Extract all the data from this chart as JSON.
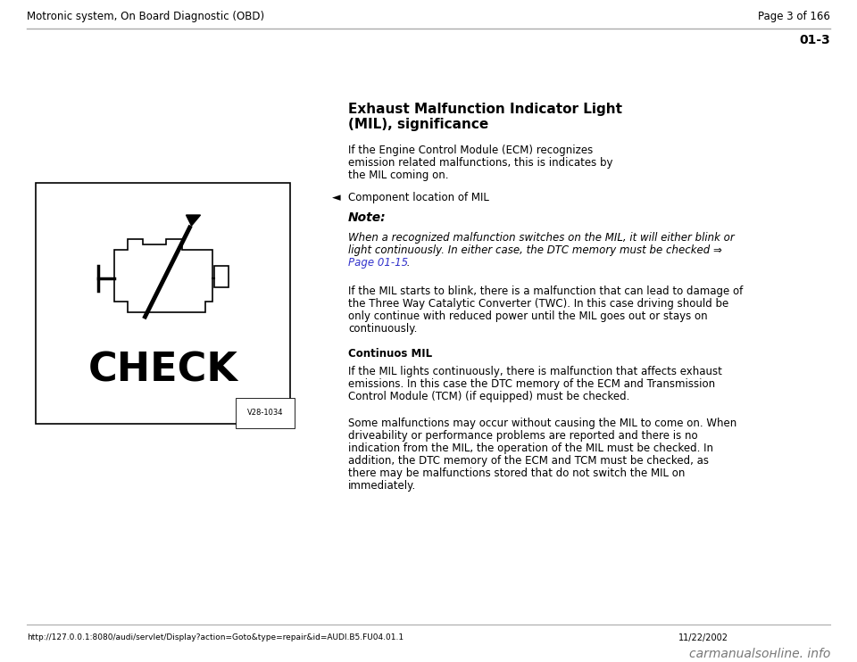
{
  "bg_color": "#ffffff",
  "header_left": "Motronic system, On Board Diagnostic (OBD)",
  "header_right": "Page 3 of 166",
  "section_code": "01-3",
  "title_line1": "Exhaust Malfunction Indicator Light",
  "title_line2": "(MIL), significance",
  "intro_line1": "If the Engine Control Module (ECM) recognizes",
  "intro_line2": "emission related malfunctions, this is indicates by",
  "intro_line3": "the MIL coming on.",
  "bullet_label": "◄",
  "bullet_text": "Component location of MIL",
  "note_label": "Note:",
  "note_italic_line1": "When a recognized malfunction switches on the MIL, it will either blink or",
  "note_italic_line2": "light continuously. In either case, the DTC memory must be checked ⇒",
  "note_link": "Page 01-15",
  "note_link_suffix": " .",
  "body1_line1": "If the MIL starts to blink, there is a malfunction that can lead to damage of",
  "body1_line2": "the Three Way Catalytic Converter (TWC). In this case driving should be",
  "body1_line3": "only continue with reduced power until the MIL goes out or stays on",
  "body1_line4": "continuously.",
  "subheading": "Continuos MIL",
  "body2_line1": "If the MIL lights continuously, there is malfunction that affects exhaust",
  "body2_line2": "emissions. In this case the DTC memory of the ECM and Transmission",
  "body2_line3": "Control Module (TCM) (if equipped) must be checked.",
  "body3_line1": "Some malfunctions may occur without causing the MIL to come on. When",
  "body3_line2": "driveability or performance problems are reported and there is no",
  "body3_line3": "indication from the MIL, the operation of the MIL must be checked. In",
  "body3_line4": "addition, the DTC memory of the ECM and TCM must be checked, as",
  "body3_line5": "there may be malfunctions stored that do not switch the MIL on",
  "body3_line6": "immediately.",
  "footer_url": "http://127.0.0.1:8080/audi/servlet/Display?action=Goto&type=repair&id=AUDI.B5.FU04.01.1",
  "footer_date": "11/22/2002",
  "footer_watermark": "carmanualsонline. info",
  "image_label": "V28-1034",
  "header_line_color": "#aaaaaa",
  "text_color": "#000000",
  "link_color": "#3333cc",
  "header_fs": 8.5,
  "body_fs": 8.5,
  "title_fs": 11,
  "note_label_fs": 10,
  "section_fs": 10,
  "footer_fs": 6.5,
  "watermark_fs": 10
}
